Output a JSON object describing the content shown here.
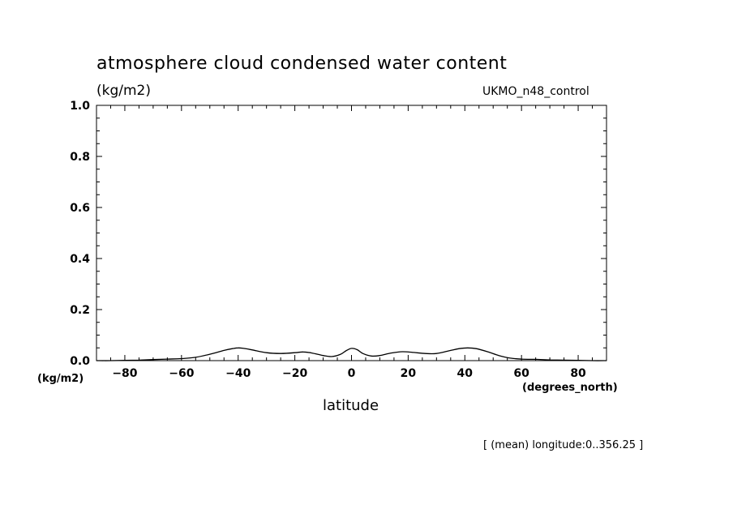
{
  "header": {
    "title": "atmosphere cloud condensed water content",
    "units_top": "(kg/m2)",
    "source": "UKMO_n48_control"
  },
  "axes": {
    "y_units": "(kg/m2)",
    "x_units": "(degrees_north)",
    "xlabel": "latitude"
  },
  "footer": {
    "note": "[ (mean) longitude:0..356.25 ]"
  },
  "chart_data": {
    "type": "line",
    "title": "atmosphere cloud condensed water content",
    "xlabel": "latitude",
    "ylabel": "(kg/m2)",
    "xlim": [
      -90,
      90
    ],
    "ylim": [
      0,
      1.0
    ],
    "xticks": [
      -80,
      -60,
      -40,
      -20,
      0,
      20,
      40,
      60,
      80
    ],
    "xtick_labels": [
      "−80",
      "−60",
      "−40",
      "−20",
      "0",
      "20",
      "40",
      "60",
      "80"
    ],
    "yticks": [
      0,
      0.2,
      0.4,
      0.6,
      0.8,
      1.0
    ],
    "ytick_labels": [
      "0.0",
      "0.2",
      "0.4",
      "0.6",
      "0.8",
      "1.0"
    ],
    "grid": false,
    "series": [
      {
        "x": [
          -90,
          -85,
          -80,
          -75,
          -70,
          -65,
          -60,
          -55,
          -50,
          -45,
          -42,
          -40,
          -38,
          -35,
          -30,
          -25,
          -20,
          -17,
          -14,
          -10,
          -7,
          -4,
          -2,
          0,
          2,
          4,
          7,
          10,
          14,
          18,
          22,
          26,
          30,
          35,
          38,
          41,
          44,
          48,
          52,
          56,
          60,
          65,
          70,
          75,
          80,
          85,
          90
        ],
        "y": [
          0.0,
          0.0,
          0.001,
          0.002,
          0.004,
          0.006,
          0.008,
          0.013,
          0.025,
          0.04,
          0.047,
          0.05,
          0.048,
          0.042,
          0.031,
          0.028,
          0.031,
          0.034,
          0.03,
          0.02,
          0.016,
          0.024,
          0.038,
          0.048,
          0.043,
          0.028,
          0.018,
          0.02,
          0.03,
          0.035,
          0.032,
          0.028,
          0.028,
          0.04,
          0.047,
          0.05,
          0.047,
          0.035,
          0.02,
          0.01,
          0.006,
          0.005,
          0.003,
          0.002,
          0.001,
          0.0,
          0.0
        ]
      }
    ]
  }
}
